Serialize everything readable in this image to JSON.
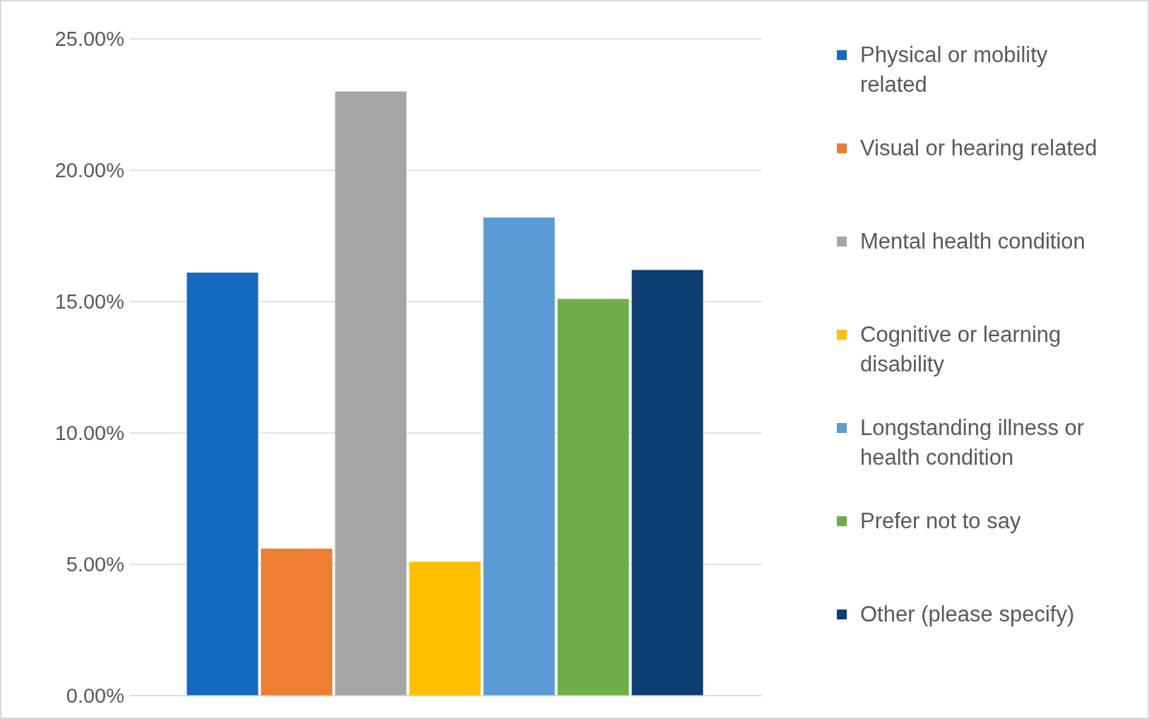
{
  "chart_data": {
    "type": "bar",
    "categories": [
      null
    ],
    "series": [
      {
        "name": "Physical or mobility related",
        "color": "#1569c1",
        "values": [
          16.1
        ]
      },
      {
        "name": "Visual or hearing related",
        "color": "#ed7d31",
        "values": [
          5.6
        ]
      },
      {
        "name": "Mental health condition",
        "color": "#a5a5a5",
        "values": [
          23.0
        ]
      },
      {
        "name": "Cognitive or learning disability",
        "color": "#ffc000",
        "values": [
          5.1
        ]
      },
      {
        "name": "Longstanding illness or health condition",
        "color": "#5b9bd5",
        "values": [
          18.2
        ]
      },
      {
        "name": "Prefer not to say",
        "color": "#70ad47",
        "values": [
          15.1
        ]
      },
      {
        "name": "Other (please specify)",
        "color": "#0c3e71",
        "values": [
          16.2
        ]
      }
    ],
    "ylim": [
      0,
      25
    ],
    "yticks": [
      {
        "value": 0,
        "label": "0.00%"
      },
      {
        "value": 5,
        "label": "5.00%"
      },
      {
        "value": 10,
        "label": "10.00%"
      },
      {
        "value": 15,
        "label": "15.00%"
      },
      {
        "value": 20,
        "label": "20.00%"
      },
      {
        "value": 25,
        "label": "25.00%"
      }
    ],
    "grid": "y",
    "legend": "right"
  }
}
